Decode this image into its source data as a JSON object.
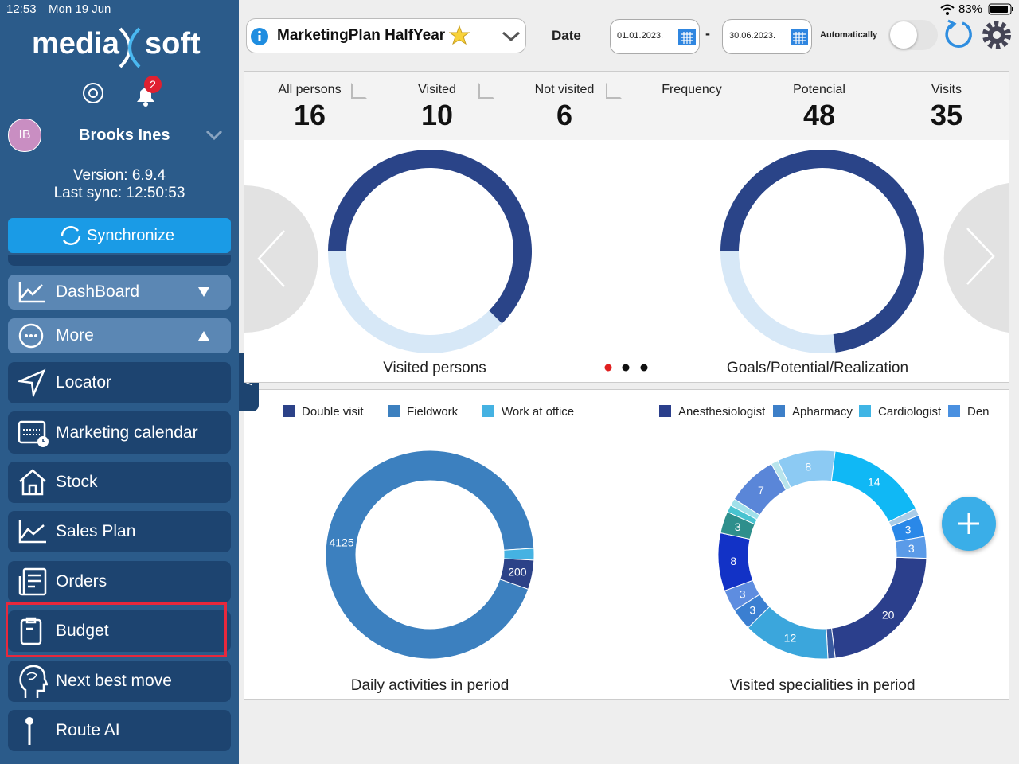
{
  "status_bar": {
    "time": "12:53",
    "date": "Mon 19 Jun",
    "battery": "83%"
  },
  "sidebar": {
    "logo_left": "media",
    "logo_right": "soft",
    "notification_count": 2,
    "user_initials": "IB",
    "user_name": "Brooks Ines",
    "version": "Version: 6.9.4",
    "last_sync": "Last sync: 12:50:53",
    "sync_button": "Synchronize",
    "menu": [
      "DashBoard",
      "More",
      "Locator",
      "Marketing calendar",
      "Stock",
      "Sales Plan",
      "Orders",
      "Budget",
      "Next best move",
      "Route AI"
    ],
    "collapse_tab": "<"
  },
  "toolbar": {
    "plan": "MarketingPlan HalfYear",
    "date_label": "Date",
    "date_from": "01.01.2023.",
    "separator": "-",
    "date_to": "30.06.2023.",
    "auto_label": "Automatically"
  },
  "stats": [
    {
      "label": "All persons",
      "value": 16
    },
    {
      "label": "Visited",
      "value": 10
    },
    {
      "label": "Not visited",
      "value": 6
    },
    {
      "label": "Frequency"
    },
    {
      "label": "Potencial",
      "value": 48
    },
    {
      "label": "Visits",
      "value": 35
    }
  ],
  "top_charts": [
    {
      "title": "Visited persons",
      "colors": [
        "#2a4488",
        "#d7e8f7"
      ]
    },
    {
      "title": "Goals/Potential/Realization",
      "colors": [
        "#2a4488",
        "#d7e8f7"
      ]
    }
  ],
  "bottom_charts": [
    {
      "title": "Daily activities in period",
      "legend": [
        {
          "name": "Double visit",
          "color": "#2c4288"
        },
        {
          "name": "Fieldwork",
          "color": "#3c80bf"
        },
        {
          "name": "Work at office",
          "color": "#45b2e2"
        }
      ],
      "values": [
        200,
        4125,
        80
      ],
      "value_labels": [
        "200",
        "4125",
        null
      ]
    },
    {
      "title": "Visited specialities in period",
      "legend": [
        {
          "name": "Anesthesiologist",
          "color": "#2b3f8c"
        },
        {
          "name": "Apharmacy",
          "color": "#3d7fc8"
        },
        {
          "name": "Cardiologist",
          "color": "#3fb5e5"
        },
        {
          "name": "Den",
          "color": "#4a90e0"
        }
      ],
      "values": [
        20,
        1,
        12,
        3,
        3,
        8,
        3,
        1,
        1,
        7,
        1,
        8,
        14,
        1,
        3,
        3
      ],
      "value_labels": [
        "20",
        null,
        "12",
        "3",
        "3",
        "8",
        "3",
        null,
        null,
        "7",
        null,
        "8",
        "14",
        null,
        "3",
        "3"
      ],
      "colors": [
        "#2b3f8c",
        "#3a5aa0",
        "#3ba6dc",
        "#3b7fd1",
        "#5e8de0",
        "#1232c6",
        "#2e8f8c",
        "#48c3d0",
        "#a0e0ea",
        "#5a86d8",
        "#b8e4ec",
        "#8ccaf3",
        "#10b8f5",
        "#a9cce8",
        "#2a88e8",
        "#5b9be8"
      ]
    }
  ]
}
